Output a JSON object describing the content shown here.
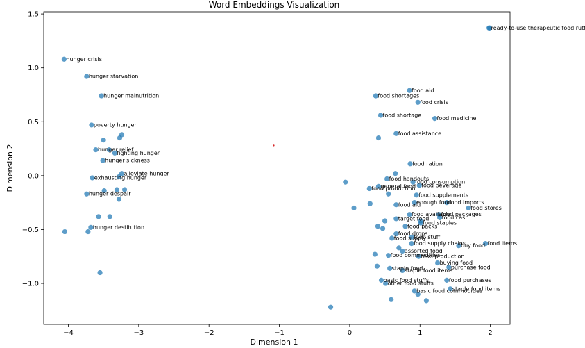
{
  "chart_data": {
    "type": "scatter",
    "title": "Word Embeddings Visualization",
    "xlabel": "Dimension 1",
    "ylabel": "Dimension 2",
    "xlim": [
      -4.35,
      2.28
    ],
    "ylim": [
      -1.38,
      1.52
    ],
    "xticks": [
      -4,
      -3,
      -2,
      -1,
      0,
      1,
      2
    ],
    "yticks": [
      -1.0,
      -0.5,
      0.0,
      0.5,
      1.0,
      1.5
    ],
    "grid": false,
    "point_color": "#1f77b4",
    "points": [
      {
        "x": 1.98,
        "y": 1.37,
        "label": "ready-to-use therapeutic food rutf"
      },
      {
        "x": 1.99,
        "y": 1.37,
        "label": ""
      },
      {
        "x": -4.06,
        "y": 1.08,
        "label": "hunger crisis"
      },
      {
        "x": -3.74,
        "y": 0.92,
        "label": "hunger starvation"
      },
      {
        "x": -3.53,
        "y": 0.74,
        "label": "hunger malnutrition"
      },
      {
        "x": -3.67,
        "y": 0.47,
        "label": "poverty hunger"
      },
      {
        "x": -3.24,
        "y": 0.38,
        "label": ""
      },
      {
        "x": -3.27,
        "y": 0.35,
        "label": ""
      },
      {
        "x": -3.5,
        "y": 0.33,
        "label": ""
      },
      {
        "x": -3.61,
        "y": 0.24,
        "label": "hunger relief"
      },
      {
        "x": -3.42,
        "y": 0.24,
        "label": ""
      },
      {
        "x": -3.34,
        "y": 0.21,
        "label": "fighting hunger"
      },
      {
        "x": -3.51,
        "y": 0.14,
        "label": "hunger sickness"
      },
      {
        "x": -3.24,
        "y": 0.02,
        "label": "alleviate hunger"
      },
      {
        "x": -3.66,
        "y": -0.02,
        "label": "exhausting hunger"
      },
      {
        "x": -3.28,
        "y": -0.01,
        "label": ""
      },
      {
        "x": -3.2,
        "y": -0.13,
        "label": ""
      },
      {
        "x": -3.31,
        "y": -0.13,
        "label": ""
      },
      {
        "x": -3.49,
        "y": -0.14,
        "label": ""
      },
      {
        "x": -3.74,
        "y": -0.17,
        "label": "hunger despair"
      },
      {
        "x": -3.28,
        "y": -0.22,
        "label": ""
      },
      {
        "x": -3.57,
        "y": -0.38,
        "label": ""
      },
      {
        "x": -3.41,
        "y": -0.38,
        "label": ""
      },
      {
        "x": -3.68,
        "y": -0.48,
        "label": "hunger destitution"
      },
      {
        "x": -3.72,
        "y": -0.52,
        "label": ""
      },
      {
        "x": -4.05,
        "y": -0.52,
        "label": ""
      },
      {
        "x": -3.55,
        "y": -0.9,
        "label": ""
      },
      {
        "x": 0.85,
        "y": 0.79,
        "label": "food aid"
      },
      {
        "x": 0.37,
        "y": 0.74,
        "label": "food shortages"
      },
      {
        "x": 0.97,
        "y": 0.68,
        "label": "food crisis"
      },
      {
        "x": 1.21,
        "y": 0.53,
        "label": "food medicine"
      },
      {
        "x": 0.44,
        "y": 0.56,
        "label": "food shortage"
      },
      {
        "x": 0.66,
        "y": 0.39,
        "label": "food assistance"
      },
      {
        "x": 0.41,
        "y": 0.35,
        "label": ""
      },
      {
        "x": 0.86,
        "y": 0.11,
        "label": "food ration"
      },
      {
        "x": -0.06,
        "y": -0.06,
        "label": ""
      },
      {
        "x": 0.53,
        "y": -0.03,
        "label": "food handouts"
      },
      {
        "x": 0.65,
        "y": 0.02,
        "label": ""
      },
      {
        "x": 0.9,
        "y": -0.06,
        "label": "food consumption"
      },
      {
        "x": 0.99,
        "y": -0.09,
        "label": "food beverage"
      },
      {
        "x": 0.28,
        "y": -0.12,
        "label": "food production"
      },
      {
        "x": 0.41,
        "y": -0.1,
        "label": "general food"
      },
      {
        "x": 0.55,
        "y": -0.17,
        "label": ""
      },
      {
        "x": 0.95,
        "y": -0.18,
        "label": "food supplements"
      },
      {
        "x": 0.06,
        "y": -0.3,
        "label": ""
      },
      {
        "x": 0.29,
        "y": -0.26,
        "label": ""
      },
      {
        "x": 0.66,
        "y": -0.27,
        "label": "food aid"
      },
      {
        "x": 0.92,
        "y": -0.25,
        "label": "enough food"
      },
      {
        "x": 1.38,
        "y": -0.25,
        "label": "food imports"
      },
      {
        "x": 1.69,
        "y": -0.3,
        "label": "food stores"
      },
      {
        "x": 1.27,
        "y": -0.36,
        "label": "food packages"
      },
      {
        "x": 0.85,
        "y": -0.36,
        "label": "food available"
      },
      {
        "x": 1.28,
        "y": -0.39,
        "label": "food cash"
      },
      {
        "x": 0.5,
        "y": -0.42,
        "label": ""
      },
      {
        "x": 0.66,
        "y": -0.4,
        "label": "target food"
      },
      {
        "x": 1.01,
        "y": -0.42,
        "label": ""
      },
      {
        "x": 1.01,
        "y": -0.44,
        "label": "food staples"
      },
      {
        "x": 0.4,
        "y": -0.47,
        "label": ""
      },
      {
        "x": 0.47,
        "y": -0.49,
        "label": ""
      },
      {
        "x": 0.79,
        "y": -0.47,
        "label": "food packs"
      },
      {
        "x": 0.66,
        "y": -0.54,
        "label": "food drops"
      },
      {
        "x": 0.88,
        "y": -0.57,
        "label": "food stuff"
      },
      {
        "x": 0.6,
        "y": -0.58,
        "label": "food supply"
      },
      {
        "x": 0.88,
        "y": -0.63,
        "label": "food supply chains"
      },
      {
        "x": 1.55,
        "y": -0.65,
        "label": "buy food"
      },
      {
        "x": 1.93,
        "y": -0.63,
        "label": "food items"
      },
      {
        "x": 0.7,
        "y": -0.67,
        "label": ""
      },
      {
        "x": 0.75,
        "y": -0.7,
        "label": "assorted food"
      },
      {
        "x": 0.36,
        "y": -0.73,
        "label": ""
      },
      {
        "x": 0.55,
        "y": -0.74,
        "label": "food commodities"
      },
      {
        "x": 0.98,
        "y": -0.75,
        "label": "food production"
      },
      {
        "x": 1.25,
        "y": -0.81,
        "label": "buying food"
      },
      {
        "x": 0.39,
        "y": -0.84,
        "label": ""
      },
      {
        "x": 0.57,
        "y": -0.86,
        "label": "staple food"
      },
      {
        "x": 1.41,
        "y": -0.85,
        "label": "purchase food"
      },
      {
        "x": 0.75,
        "y": -0.88,
        "label": "staple food items"
      },
      {
        "x": 0.45,
        "y": -0.97,
        "label": "basic food stuffs"
      },
      {
        "x": 1.38,
        "y": -0.97,
        "label": "food purchases"
      },
      {
        "x": 0.51,
        "y": -1.0,
        "label": "other food stuffs"
      },
      {
        "x": 1.43,
        "y": -1.05,
        "label": "staple food items"
      },
      {
        "x": 0.92,
        "y": -1.07,
        "label": "basic food commodities"
      },
      {
        "x": 0.97,
        "y": -1.1,
        "label": ""
      },
      {
        "x": 0.59,
        "y": -1.15,
        "label": ""
      },
      {
        "x": 1.09,
        "y": -1.16,
        "label": ""
      },
      {
        "x": -0.27,
        "y": -1.22,
        "label": ""
      }
    ],
    "highlight_point": {
      "x": -1.08,
      "y": 0.28,
      "color": "#d62728"
    }
  }
}
